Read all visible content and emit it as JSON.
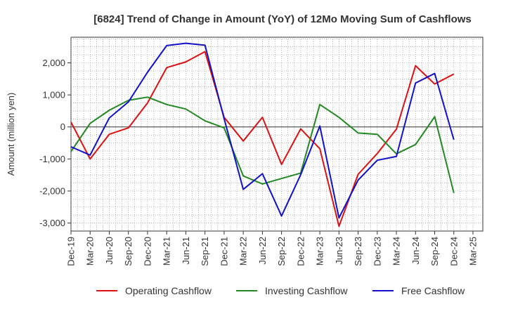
{
  "chart_data": {
    "type": "line",
    "title": "[6824]  Trend of Change in Amount (YoY) of 12Mo Moving Sum of Cashflows",
    "xlabel": "",
    "ylabel": "Amount (million yen)",
    "ylim": [
      -3250,
      2800
    ],
    "yticks": [
      2000,
      1000,
      0,
      -1000,
      -2000,
      -3000
    ],
    "ytick_labels": [
      "2,000",
      "1,000",
      "0",
      "-1,000",
      "-2,000",
      "-3,000"
    ],
    "categories": [
      "Dec-19",
      "Mar-20",
      "Jun-20",
      "Sep-20",
      "Dec-20",
      "Mar-21",
      "Jun-21",
      "Sep-21",
      "Dec-21",
      "Mar-22",
      "Jun-22",
      "Sep-22",
      "Dec-22",
      "Mar-23",
      "Jun-23",
      "Sep-23",
      "Dec-23",
      "Mar-24",
      "Jun-24",
      "Sep-24",
      "Dec-24",
      "Mar-25"
    ],
    "grid": true,
    "legend_position": "bottom",
    "series": [
      {
        "name": "Operating Cashflow",
        "color": "#dd1111",
        "values": [
          150,
          -1000,
          -230,
          -30,
          750,
          1850,
          2030,
          2350,
          300,
          -440,
          300,
          -1170,
          -60,
          -680,
          -3100,
          -1480,
          -830,
          -70,
          1910,
          1340,
          1650,
          null
        ]
      },
      {
        "name": "Investing Cashflow",
        "color": "#228822",
        "values": [
          -770,
          110,
          520,
          830,
          930,
          700,
          560,
          190,
          -30,
          -1530,
          -1780,
          -1610,
          -1440,
          700,
          300,
          -190,
          -230,
          -840,
          -550,
          320,
          -2060,
          null
        ]
      },
      {
        "name": "Free Cashflow",
        "color": "#1111cc",
        "values": [
          -620,
          -880,
          280,
          780,
          1710,
          2540,
          2610,
          2550,
          260,
          -1950,
          -1460,
          -2780,
          -1490,
          30,
          -2840,
          -1660,
          -1040,
          -920,
          1370,
          1670,
          -400,
          null
        ]
      }
    ]
  }
}
